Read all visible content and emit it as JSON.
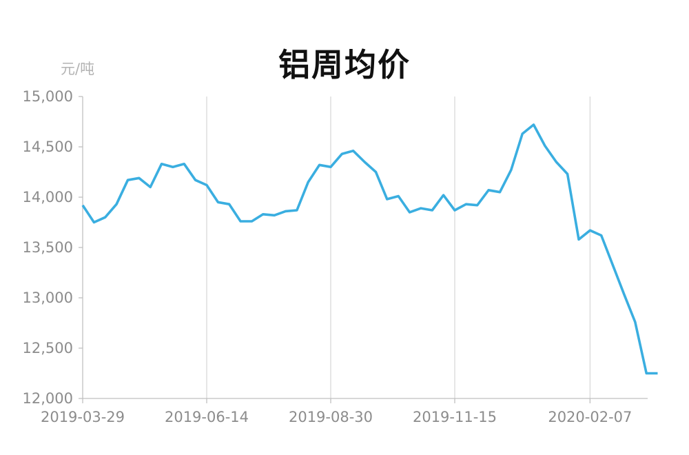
{
  "chart_data": {
    "type": "line",
    "title": "铝周均价",
    "ylabel": "元/吨",
    "xlabel": "",
    "ylim": [
      12000,
      15000
    ],
    "yticks": [
      12000,
      12500,
      13000,
      13500,
      14000,
      14500,
      15000
    ],
    "ytick_labels": [
      "12,000",
      "12,500",
      "13,000",
      "13,500",
      "14,000",
      "14,500",
      "15,000"
    ],
    "x_start_date": "2019-03-29",
    "x_step_days": 7,
    "xtick_labels": [
      "2019-03-29",
      "2019-06-14",
      "2019-08-30",
      "2019-11-15",
      "2020-02-07"
    ],
    "grid": "vertical",
    "legend": "none",
    "colors": {
      "line": "#3aaee0",
      "grid": "#d9d9d9",
      "axis": "#bfbfbf",
      "tick_text": "#8c8c8c",
      "title": "#111111",
      "unit_text": "#b3b3b3"
    },
    "series": [
      {
        "x": [
          "2019-03-29",
          "2019-04-05",
          "2019-04-12",
          "2019-04-19",
          "2019-04-26",
          "2019-05-03",
          "2019-05-10",
          "2019-05-17",
          "2019-05-24",
          "2019-05-31",
          "2019-06-07",
          "2019-06-14",
          "2019-06-21",
          "2019-06-28",
          "2019-07-05",
          "2019-07-12",
          "2019-07-19",
          "2019-07-26",
          "2019-08-02",
          "2019-08-09",
          "2019-08-16",
          "2019-08-23",
          "2019-08-30",
          "2019-09-06",
          "2019-09-13",
          "2019-09-20",
          "2019-09-27",
          "2019-10-04",
          "2019-10-11",
          "2019-10-18",
          "2019-10-25",
          "2019-11-01",
          "2019-11-08",
          "2019-11-15",
          "2019-11-22",
          "2019-11-29",
          "2019-12-06",
          "2019-12-13",
          "2019-12-20",
          "2019-12-27",
          "2020-01-03",
          "2020-01-10",
          "2020-01-17",
          "2020-01-24",
          "2020-01-31",
          "2020-02-07",
          "2020-02-14",
          "2020-02-21",
          "2020-02-28",
          "2020-03-06",
          "2020-03-13",
          "2020-03-20"
        ],
        "values": [
          13920,
          13750,
          13800,
          13930,
          14170,
          14190,
          14100,
          14330,
          14300,
          14330,
          14170,
          14120,
          13950,
          13930,
          13760,
          13760,
          13830,
          13820,
          13860,
          13870,
          14150,
          14320,
          14300,
          14430,
          14460,
          14350,
          14250,
          13980,
          14010,
          13850,
          13890,
          13870,
          14020,
          13870,
          13930,
          13920,
          14070,
          14050,
          14270,
          14630,
          14720,
          14510,
          14350,
          14230,
          13580,
          13670,
          13620,
          13330,
          13040,
          12760,
          12250,
          12250
        ]
      }
    ]
  }
}
